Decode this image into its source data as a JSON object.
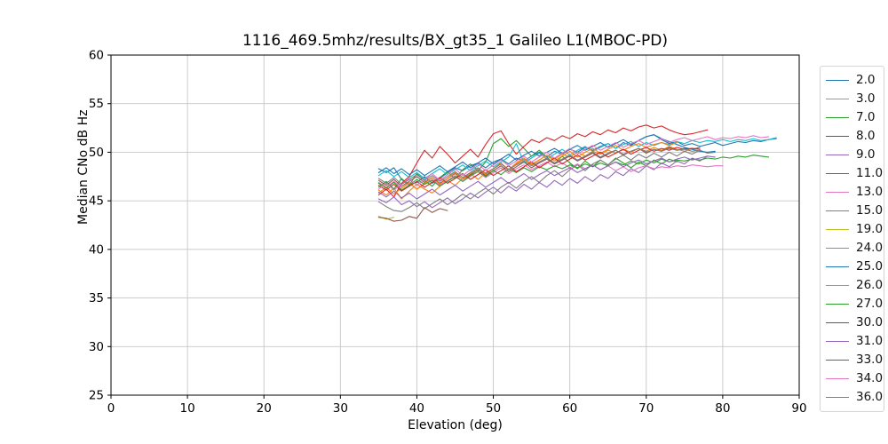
{
  "figure": {
    "title": "1116_469.5mhz/results/BX_gt35_1 Galileo L1(MBOC-PD)",
    "xlabel": "Elevation (deg)",
    "ylabel": "Median CNo dB Hz"
  },
  "chart_data": {
    "type": "line",
    "title": "1116_469.5mhz/results/BX_gt35_1 Galileo L1(MBOC-PD)",
    "xlabel": "Elevation (deg)",
    "ylabel": "Median CNo dB Hz",
    "xlim": [
      0,
      90
    ],
    "ylim": [
      25,
      60
    ],
    "xticks": [
      0,
      10,
      20,
      30,
      40,
      50,
      60,
      70,
      80,
      90
    ],
    "yticks": [
      25,
      30,
      35,
      40,
      45,
      50,
      55,
      60
    ],
    "grid": true,
    "grid_color": "#c6c6c6",
    "legend_position": "outside-right",
    "series": [
      {
        "name": "2.0",
        "color": "#1f77b4",
        "x_start": 35,
        "x_step": 1,
        "values": [
          48.3,
          47.9,
          48.4,
          47.2,
          46.6,
          46.9,
          47.5,
          46.8,
          47.3,
          47.9,
          48.4,
          48.1,
          48.6,
          48.9,
          48.4,
          49.0,
          49.3,
          48.8,
          49.4,
          49.1,
          49.6,
          50.0,
          49.5,
          50.1,
          49.8,
          50.3,
          50.0,
          50.5,
          50.2,
          50.6,
          50.9,
          50.4,
          51.0,
          50.7,
          51.2,
          51.6,
          51.8,
          51.3,
          50.9,
          51.1,
          50.7,
          50.9,
          50.6,
          50.8,
          51.0,
          50.7,
          50.9,
          51.1,
          51.0,
          51.2,
          51.1,
          51.3,
          51.4
        ]
      },
      {
        "name": "3.0",
        "color": "#ff7f0e",
        "x_start": 35,
        "x_step": 1,
        "values": [
          46.1,
          45.6,
          46.3,
          45.2,
          46.0,
          46.7,
          46.2,
          45.8,
          46.5,
          47.1,
          46.6,
          47.3,
          47.8,
          47.2,
          47.9,
          48.3,
          48.8,
          48.2,
          48.9,
          49.4,
          48.8,
          49.2,
          49.7,
          49.3,
          49.8,
          49.5,
          50.0,
          49.6,
          50.1,
          49.8,
          50.2,
          49.9,
          50.3,
          50.0,
          50.4,
          50.1,
          50.5,
          50.2,
          50.6,
          50.3,
          50.1,
          50.4,
          50.3
        ]
      },
      {
        "name": "7.0",
        "color": "#2ca02c",
        "x_start": 35,
        "x_step": 1,
        "values": [
          46.4,
          47.0,
          46.2,
          47.3,
          46.6,
          47.8,
          47.1,
          46.5,
          47.4,
          48.0,
          47.3,
          48.2,
          48.8,
          48.1,
          49.0,
          50.9,
          51.4,
          50.6,
          51.2,
          50.4,
          49.6,
          50.2,
          49.5,
          48.8,
          49.6,
          48.9,
          48.3,
          49.1,
          48.5,
          49.2,
          48.7,
          49.4,
          48.9,
          48.4,
          49.0,
          48.6,
          49.2,
          48.8,
          49.3,
          49.0
        ]
      },
      {
        "name": "8.0",
        "color": "#d62728",
        "x_start": 35,
        "x_step": 1,
        "values": [
          45.6,
          46.2,
          45.4,
          46.8,
          47.5,
          48.9,
          50.2,
          49.4,
          50.6,
          49.8,
          48.9,
          49.6,
          50.3,
          49.5,
          50.8,
          51.9,
          52.2,
          50.9,
          49.8,
          50.6,
          51.3,
          51.0,
          51.5,
          51.2,
          51.7,
          51.4,
          51.9,
          51.6,
          52.1,
          51.8,
          52.3,
          52.0,
          52.5,
          52.2,
          52.6,
          52.8,
          52.5,
          52.7,
          52.3,
          52.0,
          51.8,
          51.9,
          52.1,
          52.3
        ]
      },
      {
        "name": "9.0",
        "color": "#9467bd",
        "x_start": 35,
        "x_step": 1,
        "values": [
          45.2,
          44.8,
          45.4,
          44.6,
          45.0,
          44.4,
          44.9,
          44.3,
          44.8,
          45.3,
          44.7,
          45.2,
          45.8,
          45.3,
          45.9,
          46.4,
          45.8,
          46.5,
          46.0,
          46.7,
          46.2,
          46.9,
          46.4,
          47.1,
          46.6,
          47.3,
          46.8,
          47.5,
          47.0,
          47.7,
          47.3,
          48.0,
          47.6,
          48.3,
          47.9,
          48.6,
          48.2,
          48.9,
          48.5,
          49.1,
          48.8,
          49.4,
          49.1,
          49.6
        ]
      },
      {
        "name": "11.0",
        "color": "#8c564b",
        "x_start": 35,
        "x_step": 1,
        "values": [
          47.1,
          46.6,
          47.2,
          46.5,
          47.0,
          47.5,
          46.9,
          47.4,
          46.8,
          47.3,
          47.8,
          47.2,
          47.7,
          48.2,
          47.6,
          48.1,
          48.6,
          48.0,
          48.5,
          49.0,
          48.4,
          48.9,
          49.3,
          48.8,
          49.2,
          49.6,
          49.1,
          49.5,
          49.9,
          49.4,
          49.8,
          50.2,
          49.7,
          50.1,
          50.4,
          49.9,
          50.3,
          50.1,
          50.5,
          50.2,
          50.4,
          50.3,
          50.5
        ]
      },
      {
        "name": "13.0",
        "color": "#e377c2",
        "x_start": 35,
        "x_step": 1,
        "values": [
          46.9,
          46.4,
          47.0,
          46.3,
          46.8,
          46.2,
          46.7,
          47.2,
          46.6,
          47.1,
          47.6,
          47.0,
          47.5,
          48.0,
          47.4,
          47.9,
          48.4,
          47.8,
          48.3,
          48.7,
          48.2,
          48.6,
          49.0,
          48.5,
          48.9,
          48.4,
          48.8,
          48.3,
          48.7,
          48.2,
          48.6,
          48.1,
          48.5,
          48.0,
          48.4,
          48.6,
          48.3,
          48.5,
          48.4,
          48.6,
          48.5,
          48.7,
          48.6,
          48.5,
          48.6,
          48.6
        ]
      },
      {
        "name": "15.0",
        "color": "#7f7f7f",
        "x_start": 35,
        "x_step": 1,
        "values": [
          44.9,
          44.4,
          44.0,
          43.9,
          44.3,
          44.8,
          44.2,
          44.7,
          45.2,
          44.6,
          45.1,
          45.7,
          45.2,
          45.8,
          46.3,
          45.7,
          46.4,
          46.9,
          46.3,
          47.0,
          47.5,
          46.9,
          47.6,
          48.1,
          47.5,
          48.2,
          48.7,
          48.1,
          48.8,
          49.2,
          48.7,
          49.3,
          49.7,
          49.2,
          49.8,
          49.4,
          49.9,
          49.5,
          50.0,
          49.6,
          50.1,
          49.8,
          50.2,
          49.9,
          50.0
        ]
      },
      {
        "name": "19.0",
        "color": "#bcbd22",
        "x_start": 35,
        "x_step": 1,
        "values": [
          43.4,
          43.1,
          43.3
        ]
      },
      {
        "name": "24.0",
        "color": "#17becf",
        "x_start": 35,
        "x_step": 1,
        "values": [
          47.6,
          48.1,
          47.5,
          48.0,
          47.4,
          47.9,
          47.3,
          47.8,
          48.3,
          47.7,
          48.2,
          48.7,
          48.1,
          48.6,
          49.1,
          48.5,
          49.0,
          49.5,
          50.9,
          48.9,
          49.4,
          49.9,
          49.3,
          49.8,
          50.3,
          49.7,
          50.2,
          50.6,
          50.1,
          50.5,
          50.9,
          50.4,
          50.8,
          51.1,
          50.6,
          51.0,
          50.7,
          51.0,
          50.8,
          51.1,
          50.9,
          51.2,
          51.0,
          51.2,
          51.1,
          51.3,
          51.1,
          51.3,
          51.2,
          51.4,
          51.2,
          51.3,
          51.5
        ]
      },
      {
        "name": "25.0",
        "color": "#1f77b4",
        "x_start": 35,
        "x_step": 1,
        "values": [
          47.9,
          48.4,
          47.8,
          48.3,
          47.7,
          48.2,
          47.6,
          48.1,
          48.6,
          48.0,
          48.5,
          49.0,
          48.4,
          48.9,
          49.4,
          48.8,
          49.3,
          49.8,
          49.2,
          49.7,
          50.1,
          49.6,
          50.0,
          50.4,
          49.9,
          50.3,
          50.7,
          50.2,
          50.6,
          51.0,
          50.5,
          50.9,
          51.3,
          50.8,
          51.2,
          51.6,
          51.8,
          51.4,
          51.1,
          50.8,
          50.5,
          50.3,
          50.1,
          50.0,
          50.1
        ]
      },
      {
        "name": "26.0",
        "color": "#ff7f0e",
        "x_start": 35,
        "x_step": 1,
        "values": [
          45.8,
          46.4,
          45.7,
          46.3,
          46.9,
          46.2,
          46.8,
          47.4,
          46.7,
          47.3,
          47.9,
          47.2,
          47.8,
          48.4,
          47.7,
          48.3,
          48.9,
          48.2,
          48.8,
          49.3,
          48.7,
          49.2,
          49.7,
          49.1,
          49.6,
          50.1,
          49.5,
          50.0,
          50.4,
          49.9,
          50.3,
          50.7,
          50.2,
          50.6,
          50.9,
          50.5,
          50.8,
          51.0,
          50.7,
          51.0
        ]
      },
      {
        "name": "27.0",
        "color": "#2ca02c",
        "x_start": 35,
        "x_step": 1,
        "values": [
          46.8,
          46.3,
          46.9,
          46.1,
          46.6,
          47.2,
          46.7,
          47.1,
          46.5,
          47.0,
          47.5,
          47.0,
          47.6,
          48.0,
          47.5,
          48.1,
          47.7,
          48.3,
          47.9,
          48.4,
          48.0,
          48.5,
          48.2,
          48.6,
          48.3,
          48.7,
          48.4,
          48.8,
          48.5,
          48.9,
          48.6,
          49.0,
          48.7,
          49.1,
          48.8,
          49.2,
          48.9,
          49.3,
          49.0,
          49.2,
          49.1,
          49.3,
          49.2,
          49.4,
          49.3,
          49.5,
          49.4,
          49.6,
          49.5,
          49.7,
          49.6,
          49.5
        ]
      },
      {
        "name": "30.0",
        "color": "#d62728",
        "x_start": 35,
        "x_step": 1,
        "values": [
          46.6,
          46.1,
          46.7,
          46.0,
          46.5,
          47.0,
          46.4,
          46.9,
          47.4,
          46.8,
          47.3,
          47.8,
          47.2,
          47.7,
          48.2,
          47.6,
          48.1,
          48.6,
          48.0,
          48.5,
          49.0,
          48.4,
          48.9,
          49.4,
          48.8,
          49.3,
          49.7,
          49.2,
          49.6,
          50.0,
          49.5,
          49.9,
          50.3,
          49.8,
          50.2,
          50.5,
          50.1,
          50.4,
          50.2,
          50.5,
          50.3,
          50.4,
          50.3
        ]
      },
      {
        "name": "31.0",
        "color": "#9467bd",
        "x_start": 35,
        "x_step": 1,
        "values": [
          45.9,
          45.4,
          46.0,
          45.3,
          45.8,
          45.2,
          45.7,
          46.2,
          45.6,
          46.1,
          46.6,
          46.0,
          46.5,
          47.0,
          46.4,
          46.9,
          47.4,
          46.8,
          47.3,
          47.8,
          47.2,
          47.7,
          48.1,
          47.6,
          48.0,
          48.4,
          47.9,
          48.3,
          48.7,
          48.2,
          48.6,
          49.0,
          48.5,
          48.9,
          49.2,
          48.8,
          49.1,
          49.4,
          49.0,
          49.3,
          49.5,
          49.2,
          49.4,
          49.6,
          49.5
        ]
      },
      {
        "name": "33.0",
        "color": "#8c564b",
        "x_start": 35,
        "x_step": 1,
        "values": [
          43.3,
          43.2,
          42.9,
          43.0,
          43.4,
          43.2,
          44.3,
          43.8,
          44.2,
          44.0
        ]
      },
      {
        "name": "34.0",
        "color": "#e377c2",
        "x_start": 35,
        "x_step": 1,
        "values": [
          46.2,
          46.8,
          46.1,
          46.7,
          47.3,
          46.6,
          47.2,
          47.8,
          47.1,
          47.7,
          48.3,
          47.6,
          48.2,
          48.8,
          48.1,
          48.7,
          49.2,
          48.6,
          49.1,
          49.6,
          49.0,
          49.5,
          50.0,
          49.4,
          49.9,
          50.4,
          49.8,
          50.3,
          50.7,
          50.2,
          50.6,
          51.0,
          50.5,
          50.9,
          51.2,
          50.8,
          51.1,
          51.4,
          51.0,
          51.3,
          51.5,
          51.2,
          51.4,
          51.6,
          51.3,
          51.5,
          51.4,
          51.6,
          51.5,
          51.7,
          51.5,
          51.6
        ]
      },
      {
        "name": "36.0",
        "color": "#7f7f7f",
        "x_start": 35,
        "x_step": 1,
        "values": [
          47.3,
          46.8,
          47.4,
          46.7,
          47.2,
          47.7,
          47.1,
          47.6,
          47.0,
          47.5,
          48.0,
          47.4,
          47.9,
          48.4,
          47.8,
          48.3,
          48.8,
          48.2,
          48.7,
          49.1,
          48.6,
          49.0,
          49.4,
          48.9,
          49.3,
          49.7,
          49.2,
          49.6,
          50.0,
          49.5,
          49.9,
          50.2,
          49.8,
          50.1,
          50.4,
          50.0,
          50.3,
          50.1,
          50.4,
          50.2,
          50.3,
          50.1,
          50.2
        ]
      }
    ]
  }
}
